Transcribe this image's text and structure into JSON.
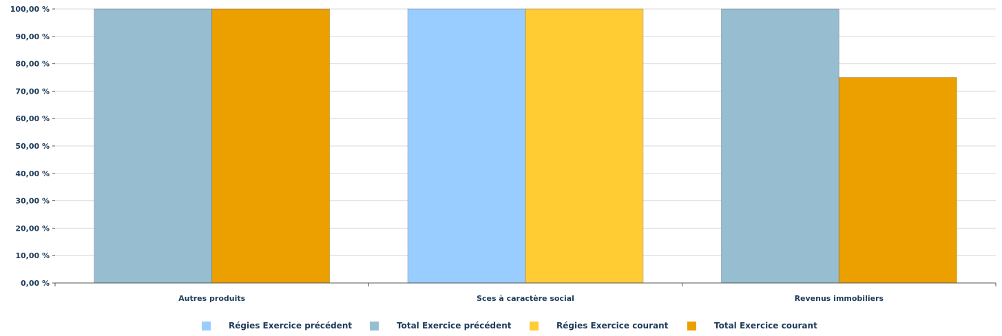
{
  "chart_data": {
    "type": "bar",
    "categories": [
      "Autres produits",
      "Sces à caractère social",
      "Revenus immobiliers"
    ],
    "series": [
      {
        "name": "Régies Exercice précédent",
        "color": "#99ccff",
        "values": [
          0,
          100,
          0
        ]
      },
      {
        "name": "Total Exercice précédent",
        "color": "#96bdd0",
        "values": [
          100,
          0,
          100
        ]
      },
      {
        "name": "Régies Exercice courant",
        "color": "#ffcc33",
        "values": [
          0,
          100,
          0
        ]
      },
      {
        "name": "Total Exercice courant",
        "color": "#eba000",
        "values": [
          100,
          0,
          75
        ]
      }
    ],
    "ylim": [
      0,
      100
    ],
    "yticks": [
      "0,00 %",
      "10,00 %",
      "20,00 %",
      "30,00 %",
      "40,00 %",
      "50,00 %",
      "60,00 %",
      "70,00 %",
      "80,00 %",
      "90,00 %",
      "100,00 %"
    ],
    "grid": true,
    "legend_position": "bottom"
  }
}
